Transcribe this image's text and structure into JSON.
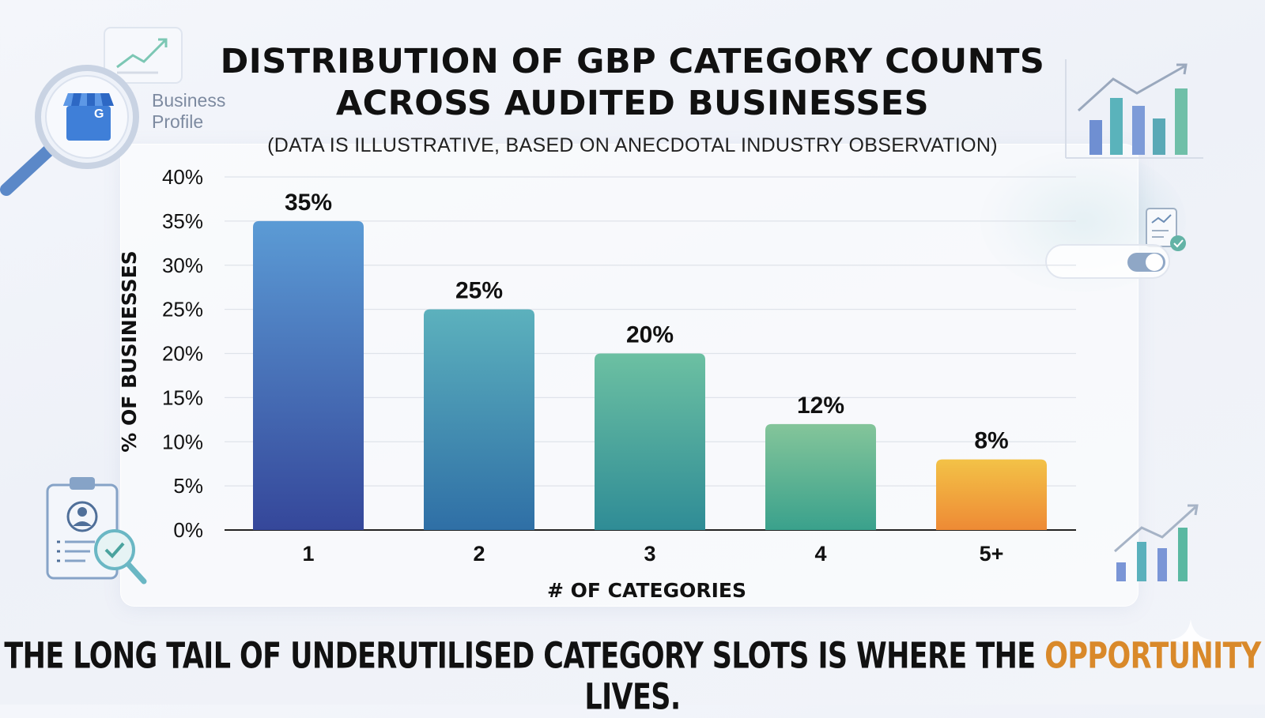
{
  "header": {
    "title_line1": "DISTRIBUTION OF GBP CATEGORY COUNTS",
    "title_line2": "ACROSS AUDITED BUSINESSES",
    "subtitle": "(DATA IS ILLUSTRATIVE, BASED ON ANECDOTAL INDUSTRY OBSERVATION)"
  },
  "badge": {
    "line1": "Business",
    "line2": "Profile",
    "logo_letter": "G"
  },
  "footer": {
    "before": "THE LONG TAIL OF UNDERUTILISED CATEGORY SLOTS IS WHERE THE ",
    "highlight": "OPPORTUNITY",
    "after": " LIVES."
  },
  "colors": {
    "bar_gradients": [
      [
        "#5b9bd5",
        "#35479a"
      ],
      [
        "#5cb1bd",
        "#2f6fa6"
      ],
      [
        "#6cc0a2",
        "#2f8c96"
      ],
      [
        "#84c59a",
        "#3aa18c"
      ],
      [
        "#f3c247",
        "#ee8a35"
      ]
    ],
    "highlight": "#d9892a"
  },
  "chart_data": {
    "type": "bar",
    "categories": [
      "1",
      "2",
      "3",
      "4",
      "5+"
    ],
    "values": [
      35,
      25,
      20,
      12,
      8
    ],
    "value_labels": [
      "35%",
      "25%",
      "20%",
      "12%",
      "8%"
    ],
    "xlabel": "# OF CATEGORIES",
    "ylabel": "% OF BUSINESSES",
    "ylim": [
      0,
      40
    ],
    "yticks": [
      0,
      5,
      10,
      15,
      20,
      25,
      30,
      35,
      40
    ],
    "ytick_labels": [
      "0%",
      "5%",
      "10%",
      "15%",
      "20%",
      "25%",
      "30%",
      "35%",
      "40%"
    ],
    "grid": true
  }
}
